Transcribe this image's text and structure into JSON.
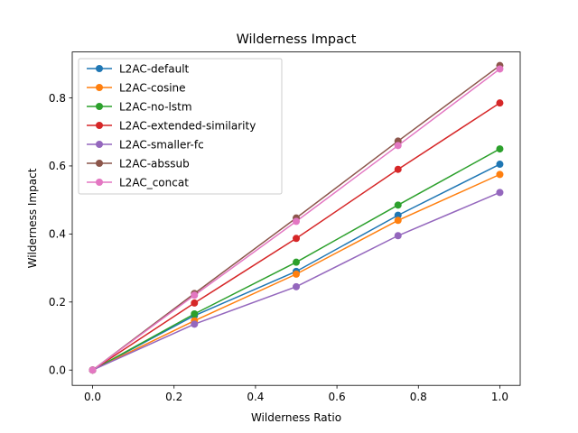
{
  "chart_data": {
    "type": "line",
    "title": "Wilderness Impact",
    "xlabel": "Wilderness Ratio",
    "ylabel": "Wilderness Impact",
    "x": [
      0.0,
      0.25,
      0.5,
      0.75,
      1.0
    ],
    "xlim": [
      -0.05,
      1.05
    ],
    "ylim": [
      -0.045,
      0.935
    ],
    "xticks": [
      0.0,
      0.2,
      0.4,
      0.6,
      0.8,
      1.0
    ],
    "xtick_labels": [
      "0.0",
      "0.2",
      "0.4",
      "0.6",
      "0.8",
      "1.0"
    ],
    "yticks": [
      0.0,
      0.2,
      0.4,
      0.6,
      0.8
    ],
    "ytick_labels": [
      "0.0",
      "0.2",
      "0.4",
      "0.6",
      "0.8"
    ],
    "grid": false,
    "legend_position": "top-left",
    "series": [
      {
        "name": "L2AC-default",
        "color": "#1f77b4",
        "values": [
          0.0,
          0.16,
          0.29,
          0.455,
          0.605
        ]
      },
      {
        "name": "L2AC-cosine",
        "color": "#ff7f0e",
        "values": [
          0.0,
          0.145,
          0.282,
          0.44,
          0.575
        ]
      },
      {
        "name": "L2AC-no-lstm",
        "color": "#2ca02c",
        "values": [
          0.0,
          0.165,
          0.317,
          0.485,
          0.65
        ]
      },
      {
        "name": "L2AC-extended-similarity",
        "color": "#d62728",
        "values": [
          0.0,
          0.197,
          0.387,
          0.59,
          0.785
        ]
      },
      {
        "name": "L2AC-smaller-fc",
        "color": "#9467bd",
        "values": [
          0.0,
          0.135,
          0.245,
          0.395,
          0.522
        ]
      },
      {
        "name": "L2AC-abssub",
        "color": "#8c564b",
        "values": [
          0.0,
          0.225,
          0.447,
          0.673,
          0.895
        ]
      },
      {
        "name": "L2AC_concat",
        "color": "#e377c2",
        "values": [
          0.0,
          0.22,
          0.437,
          0.66,
          0.885
        ]
      }
    ]
  }
}
